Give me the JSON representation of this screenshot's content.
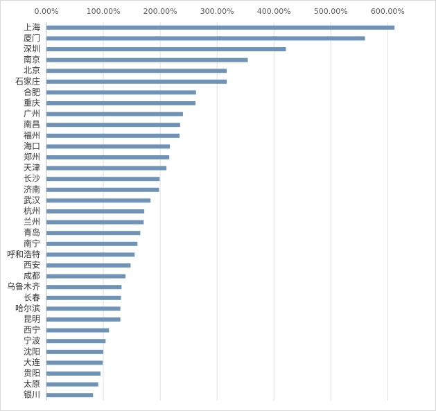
{
  "chart_data": {
    "type": "bar",
    "orientation": "horizontal",
    "categories": [
      "上海",
      "厦门",
      "深圳",
      "南京",
      "北京",
      "石家庄",
      "合肥",
      "重庆",
      "广州",
      "南昌",
      "福州",
      "海口",
      "郑州",
      "天津",
      "长沙",
      "济南",
      "武汉",
      "杭州",
      "兰州",
      "青岛",
      "南宁",
      "呼和浩特",
      "西安",
      "成都",
      "乌鲁木齐",
      "长春",
      "哈尔滨",
      "昆明",
      "西宁",
      "宁波",
      "沈阳",
      "大连",
      "贵阳",
      "太原",
      "银川"
    ],
    "values": [
      612,
      560,
      421,
      354,
      317,
      317,
      263,
      262,
      240,
      235,
      234,
      217,
      216,
      211,
      199,
      198,
      183,
      172,
      171,
      165,
      160,
      155,
      148,
      139,
      132,
      131,
      130,
      130,
      110,
      104,
      100,
      99,
      95,
      91,
      82
    ],
    "color": "#6f93b6",
    "xlim": [
      0,
      680
    ],
    "xticks": [
      {
        "value": 0,
        "label": "0.00%"
      },
      {
        "value": 100,
        "label": "100.00%"
      },
      {
        "value": 200,
        "label": "200.00%"
      },
      {
        "value": 300,
        "label": "300.00%"
      },
      {
        "value": 400,
        "label": "400.00%"
      },
      {
        "value": 500,
        "label": "500.00%"
      },
      {
        "value": 600,
        "label": "600.00%"
      }
    ],
    "grid": true
  }
}
